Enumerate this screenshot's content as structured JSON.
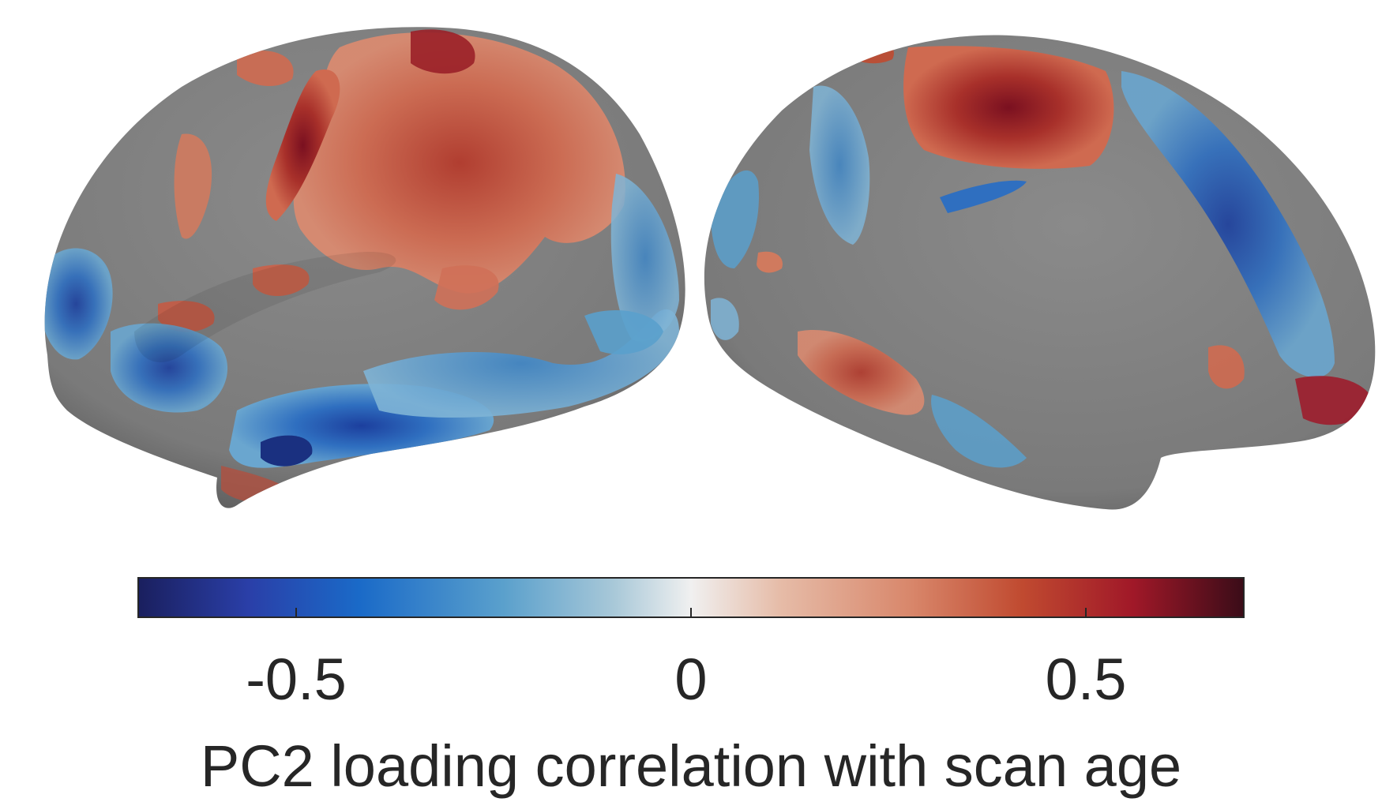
{
  "figure": {
    "views": [
      {
        "name": "lateral",
        "description_color": "#7f7f7f"
      },
      {
        "name": "medial",
        "description_color": "#7f7f7f"
      }
    ],
    "colorbar": {
      "ticks": [
        {
          "value": -0.5,
          "label": "-0.5"
        },
        {
          "value": 0,
          "label": "0"
        },
        {
          "value": 0.5,
          "label": "0.5"
        }
      ],
      "range": [
        -0.7,
        0.7
      ],
      "label": "PC2 loading correlation with scan age",
      "colors": [
        "#1a1f5e",
        "#2a4cb8",
        "#1a6ac8",
        "#5aa0cc",
        "#a8c8d8",
        "#f2f2f2",
        "#e8c0b0",
        "#d8866a",
        "#c04a30",
        "#a01828",
        "#4a1020"
      ]
    },
    "surface_color": "#7f7f7f",
    "positive_color": "#c95a43",
    "negative_color": "#3d84c6"
  }
}
